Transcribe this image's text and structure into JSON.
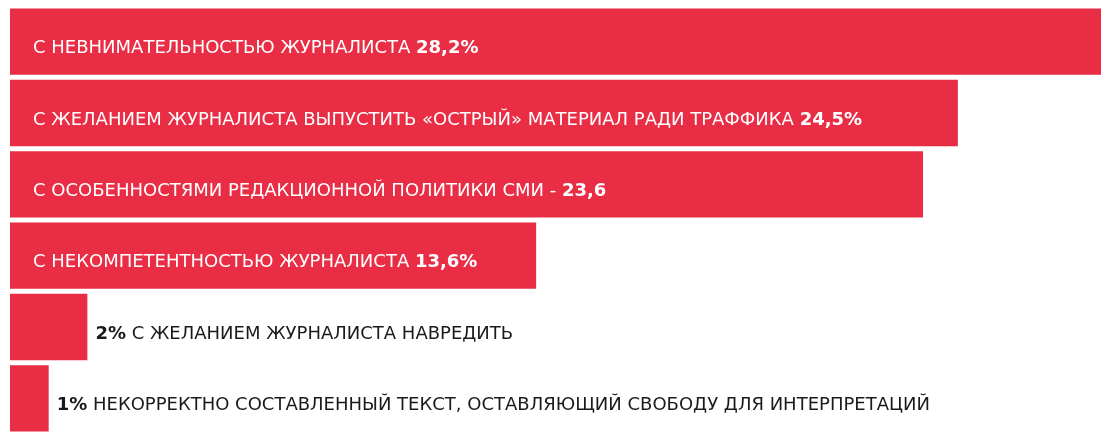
{
  "chart_data": {
    "type": "bar",
    "orientation": "horizontal",
    "categories": [
      "С НЕВНИМАТЕЛЬНОСТЬЮ ЖУРНАЛИСТА",
      "С ЖЕЛАНИЕМ ЖУРНАЛИСТА ВЫПУСТИТЬ «ОСТРЫЙ» МАТЕРИАЛ РАДИ ТРАФФИКА",
      "С ОСОБЕННОСТЯМИ РЕДАКЦИОННОЙ ПОЛИТИКИ СМИ -",
      "С НЕКОМПЕТЕНТНОСТЬЮ ЖУРНАЛИСТА",
      "С ЖЕЛАНИЕМ ЖУРНАЛИСТА НАВРЕДИТЬ",
      "НЕКОРРЕКТНО СОСТАВЛЕННЫЙ ТЕКСТ, ОСТАВЛЯЮЩИЙ СВОБОДУ ДЛЯ ИНТЕРПРЕТАЦИЙ"
    ],
    "values": [
      28.2,
      24.5,
      23.6,
      13.6,
      2,
      1
    ],
    "value_labels": [
      "28,2%",
      "24,5%",
      "23,6",
      "13,6%",
      "2%",
      "1%"
    ],
    "color": "#e92d45"
  }
}
